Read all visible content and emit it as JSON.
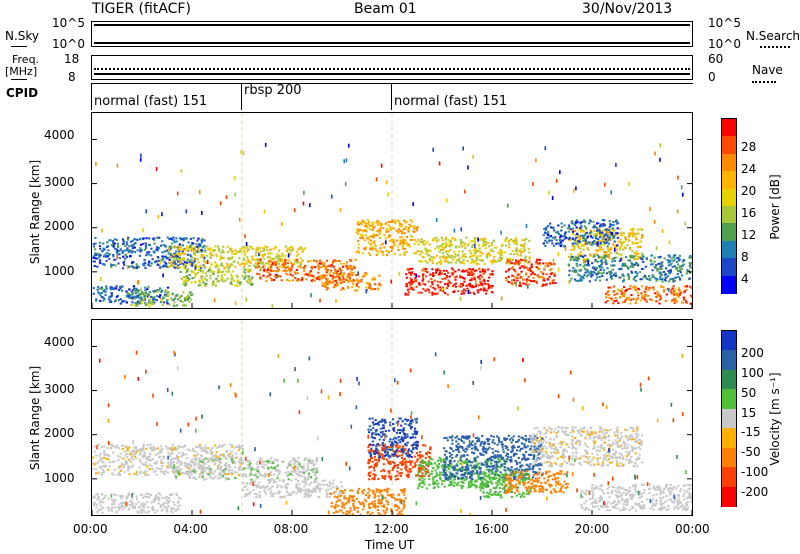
{
  "header": {
    "station": "TIGER (fitACF)",
    "beam": "Beam 01",
    "date": "30/Nov/2013"
  },
  "nsky_panel": {
    "left_label": "N.Sky",
    "right_label": "N.Search",
    "left_ticks": [
      "10^5",
      "10^0"
    ],
    "right_ticks": [
      "10^5",
      "10^0"
    ]
  },
  "freq_panel": {
    "left_label_line1": "Freq.",
    "left_label_line2": "[MHz]",
    "right_label": "Nave",
    "left_ticks": [
      "18",
      "8"
    ],
    "right_ticks": [
      "60",
      "0"
    ]
  },
  "cpid_panel": {
    "label": "CPID",
    "segments": [
      {
        "name": "normal (fast) 151",
        "start_ut": "00:00",
        "end_ut": "06:00"
      },
      {
        "name": "rbsp 200",
        "start_ut": "06:00",
        "end_ut": "12:00"
      },
      {
        "name": "normal (fast) 151",
        "start_ut": "12:00",
        "end_ut": "24:00"
      }
    ]
  },
  "power_colorbar": {
    "label": "Power [dB]",
    "ticks": [
      "28",
      "24",
      "20",
      "16",
      "12",
      "8",
      "4"
    ],
    "colors": [
      "#ff0000",
      "#ff4a00",
      "#ff8c00",
      "#ffb400",
      "#e6d200",
      "#a8c83c",
      "#50a050",
      "#1e7fb4",
      "#1e46c8",
      "#0000ff"
    ]
  },
  "velocity_colorbar": {
    "label": "Velocity [m s⁻¹]",
    "ticks": [
      "200",
      "100",
      "50",
      "15",
      "-15",
      "-50",
      "-100",
      "-200"
    ],
    "colors": [
      "#1436c8",
      "#2a62a8",
      "#2e8c52",
      "#4fbf3a",
      "#c8c8c8",
      "#ffb000",
      "#ff8000",
      "#ff4000",
      "#ff0000"
    ]
  },
  "axes": {
    "ylabel": "Slant Range [km]",
    "xlabel": "Time UT",
    "yticks": [
      "4000",
      "3000",
      "2000",
      "1000"
    ],
    "xticks": [
      "00:00",
      "04:00",
      "08:00",
      "12:00",
      "16:00",
      "20:00",
      "00:00"
    ]
  },
  "chart_data": [
    {
      "type": "heatmap",
      "title": "TIGER (fitACF) Beam 01 30/Nov/2013",
      "quantity": "Power [dB]",
      "xlabel": "Time UT",
      "ylabel": "Slant Range [km]",
      "xlim_hours": [
        0,
        24
      ],
      "ylim_km": [
        180,
        4600
      ],
      "clim": [
        0,
        30
      ],
      "scatter_regions": [
        {
          "t0": 0.0,
          "t1": 4.5,
          "r0": 1100,
          "r1": 1800,
          "power": 6
        },
        {
          "t0": 0.0,
          "t1": 3.0,
          "r0": 300,
          "r1": 700,
          "power": 6
        },
        {
          "t0": 1.5,
          "t1": 4.0,
          "r0": 250,
          "r1": 600,
          "power": 12
        },
        {
          "t0": 3.0,
          "t1": 8.5,
          "r0": 1100,
          "r1": 1600,
          "power": 16
        },
        {
          "t0": 3.5,
          "t1": 6.5,
          "r0": 700,
          "r1": 1100,
          "power": 14
        },
        {
          "t0": 6.5,
          "t1": 10.5,
          "r0": 800,
          "r1": 1300,
          "power": 24
        },
        {
          "t0": 9.0,
          "t1": 11.5,
          "r0": 600,
          "r1": 1000,
          "power": 22
        },
        {
          "t0": 10.5,
          "t1": 13.0,
          "r0": 1400,
          "r1": 2200,
          "power": 20
        },
        {
          "t0": 12.5,
          "t1": 16.0,
          "r0": 500,
          "r1": 1100,
          "power": 28
        },
        {
          "t0": 13.0,
          "t1": 17.5,
          "r0": 1200,
          "r1": 1800,
          "power": 16
        },
        {
          "t0": 16.5,
          "t1": 18.5,
          "r0": 700,
          "r1": 1300,
          "power": 26
        },
        {
          "t0": 19.0,
          "t1": 22.0,
          "r0": 1300,
          "r1": 2000,
          "power": 18
        },
        {
          "t0": 18.0,
          "t1": 21.0,
          "r0": 1600,
          "r1": 2200,
          "power": 6
        },
        {
          "t0": 20.5,
          "t1": 24.0,
          "r0": 300,
          "r1": 700,
          "power": 24
        },
        {
          "t0": 19.0,
          "t1": 24.0,
          "r0": 800,
          "r1": 1400,
          "power": 8
        }
      ]
    },
    {
      "type": "heatmap",
      "title": "TIGER (fitACF) Beam 01 30/Nov/2013",
      "quantity": "Velocity [m s^-1]",
      "xlabel": "Time UT",
      "ylabel": "Slant Range [km]",
      "xlim_hours": [
        0,
        24
      ],
      "ylim_km": [
        180,
        4600
      ],
      "clim": [
        -200,
        200
      ],
      "scatter_regions": [
        {
          "t0": 0.0,
          "t1": 6.0,
          "r0": 1100,
          "r1": 1800,
          "velocity": -5
        },
        {
          "t0": 0.0,
          "t1": 3.5,
          "r0": 250,
          "r1": 700,
          "velocity": 0
        },
        {
          "t0": 3.0,
          "t1": 9.0,
          "r0": 1000,
          "r1": 1500,
          "velocity": 5
        },
        {
          "t0": 6.0,
          "t1": 10.0,
          "r0": 600,
          "r1": 1000,
          "velocity": 0
        },
        {
          "t0": 9.5,
          "t1": 12.5,
          "r0": 200,
          "r1": 800,
          "velocity": -80
        },
        {
          "t0": 11.0,
          "t1": 13.5,
          "r0": 1000,
          "r1": 1800,
          "velocity": -150
        },
        {
          "t0": 11.0,
          "t1": 13.0,
          "r0": 1500,
          "r1": 2400,
          "velocity": 200
        },
        {
          "t0": 13.0,
          "t1": 16.5,
          "r0": 800,
          "r1": 1500,
          "velocity": 35
        },
        {
          "t0": 14.0,
          "t1": 18.0,
          "r0": 1000,
          "r1": 2000,
          "velocity": 150
        },
        {
          "t0": 15.5,
          "t1": 17.5,
          "r0": 600,
          "r1": 1200,
          "velocity": 40
        },
        {
          "t0": 16.5,
          "t1": 19.0,
          "r0": 700,
          "r1": 1200,
          "velocity": -70
        },
        {
          "t0": 17.5,
          "t1": 22.0,
          "r0": 1300,
          "r1": 2200,
          "velocity": -5
        },
        {
          "t0": 19.5,
          "t1": 24.0,
          "r0": 300,
          "r1": 900,
          "velocity": 0
        }
      ]
    }
  ]
}
